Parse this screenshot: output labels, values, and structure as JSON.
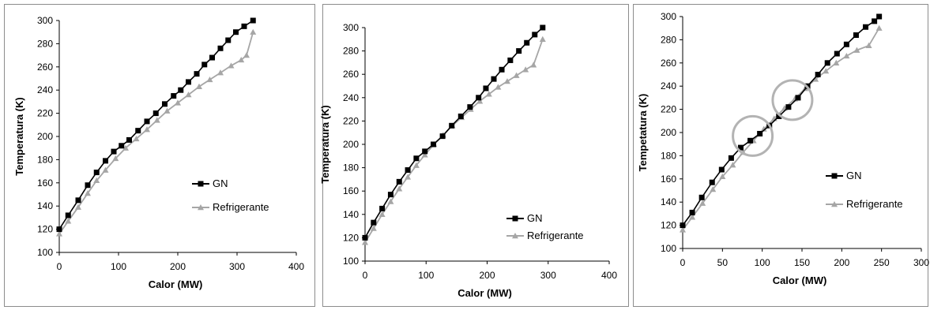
{
  "chart_data": [
    {
      "type": "line",
      "xlabel": "Calor (MW)",
      "ylabel": "Temperatura (K)",
      "xlim": [
        0,
        400
      ],
      "ylim": [
        100,
        300
      ],
      "xticks": [
        0,
        100,
        200,
        300,
        400
      ],
      "yticks": [
        100,
        120,
        140,
        160,
        180,
        200,
        220,
        240,
        260,
        280,
        300
      ],
      "grid": false,
      "legend_position": "right",
      "series": [
        {
          "name": "GN",
          "color": "#000000",
          "marker": "square",
          "points": [
            [
              0,
              120
            ],
            [
              15,
              132
            ],
            [
              32,
              145
            ],
            [
              48,
              158
            ],
            [
              63,
              169
            ],
            [
              78,
              179
            ],
            [
              92,
              187
            ],
            [
              105,
              192
            ],
            [
              118,
              197
            ],
            [
              133,
              205
            ],
            [
              148,
              213
            ],
            [
              163,
              220
            ],
            [
              178,
              228
            ],
            [
              193,
              235
            ],
            [
              205,
              240
            ],
            [
              218,
              247
            ],
            [
              232,
              254
            ],
            [
              245,
              262
            ],
            [
              258,
              268
            ],
            [
              272,
              276
            ],
            [
              285,
              283
            ],
            [
              298,
              290
            ],
            [
              312,
              295
            ],
            [
              327,
              300
            ]
          ]
        },
        {
          "name": "Refrigerante",
          "color": "#a6a6a6",
          "marker": "triangle",
          "points": [
            [
              0,
              116
            ],
            [
              15,
              127
            ],
            [
              32,
              139
            ],
            [
              48,
              151
            ],
            [
              63,
              162
            ],
            [
              78,
              171
            ],
            [
              95,
              181
            ],
            [
              112,
              190
            ],
            [
              130,
              198
            ],
            [
              148,
              206
            ],
            [
              165,
              214
            ],
            [
              182,
              222
            ],
            [
              200,
              229
            ],
            [
              218,
              236
            ],
            [
              236,
              243
            ],
            [
              254,
              249
            ],
            [
              272,
              255
            ],
            [
              290,
              261
            ],
            [
              307,
              266
            ],
            [
              316,
              270
            ],
            [
              327,
              290
            ]
          ]
        }
      ]
    },
    {
      "type": "line",
      "xlabel": "Calor (MW)",
      "ylabel": "Temperatura (K)",
      "xlim": [
        0,
        400
      ],
      "ylim": [
        100,
        300
      ],
      "xticks": [
        0,
        100,
        200,
        300,
        400
      ],
      "yticks": [
        100,
        120,
        140,
        160,
        180,
        200,
        220,
        240,
        260,
        280,
        300
      ],
      "grid": false,
      "legend_position": "bottom-right",
      "series": [
        {
          "name": "GN",
          "color": "#000000",
          "marker": "square",
          "points": [
            [
              0,
              120
            ],
            [
              14,
              133
            ],
            [
              28,
              145
            ],
            [
              42,
              157
            ],
            [
              56,
              168
            ],
            [
              70,
              178
            ],
            [
              84,
              188
            ],
            [
              98,
              194
            ],
            [
              112,
              200
            ],
            [
              127,
              207
            ],
            [
              142,
              216
            ],
            [
              157,
              224
            ],
            [
              172,
              232
            ],
            [
              186,
              240
            ],
            [
              198,
              248
            ],
            [
              211,
              256
            ],
            [
              224,
              264
            ],
            [
              238,
              272
            ],
            [
              252,
              280
            ],
            [
              265,
              287
            ],
            [
              278,
              294
            ],
            [
              291,
              300
            ]
          ]
        },
        {
          "name": "Refrigerante",
          "color": "#a6a6a6",
          "marker": "triangle",
          "points": [
            [
              0,
              116
            ],
            [
              14,
              128
            ],
            [
              28,
              140
            ],
            [
              42,
              151
            ],
            [
              56,
              162
            ],
            [
              70,
              172
            ],
            [
              84,
              182
            ],
            [
              98,
              191
            ],
            [
              113,
              200
            ],
            [
              128,
              208
            ],
            [
              143,
              216
            ],
            [
              158,
              223
            ],
            [
              173,
              230
            ],
            [
              188,
              237
            ],
            [
              203,
              243
            ],
            [
              218,
              249
            ],
            [
              233,
              254
            ],
            [
              248,
              259
            ],
            [
              263,
              264
            ],
            [
              276,
              268
            ],
            [
              291,
              290
            ]
          ]
        }
      ]
    },
    {
      "type": "line",
      "xlabel": "Calor (MW)",
      "ylabel": "Tempetatura (K)",
      "xlim": [
        0,
        300
      ],
      "ylim": [
        100,
        300
      ],
      "xticks": [
        0,
        50,
        100,
        150,
        200,
        250,
        300
      ],
      "xtick_labels": [
        "0",
        "50",
        "100",
        "150",
        "200",
        "250",
        "300"
      ],
      "yticks": [
        100,
        120,
        140,
        160,
        180,
        200,
        220,
        240,
        260,
        280,
        300
      ],
      "grid": false,
      "legend_position": "right",
      "annotations": [
        {
          "shape": "circle",
          "near": [
            88,
            197
          ]
        },
        {
          "shape": "circle",
          "near": [
            138,
            228
          ]
        }
      ],
      "series": [
        {
          "name": "GN",
          "color": "#000000",
          "marker": "square",
          "points": [
            [
              0,
              120
            ],
            [
              12,
              131
            ],
            [
              24,
              144
            ],
            [
              37,
              157
            ],
            [
              49,
              168
            ],
            [
              61,
              178
            ],
            [
              73,
              187
            ],
            [
              85,
              193
            ],
            [
              97,
              199
            ],
            [
              109,
              206
            ],
            [
              121,
              214
            ],
            [
              133,
              222
            ],
            [
              145,
              230
            ],
            [
              157,
              240
            ],
            [
              170,
              250
            ],
            [
              182,
              260
            ],
            [
              194,
              268
            ],
            [
              206,
              276
            ],
            [
              218,
              284
            ],
            [
              230,
              291
            ],
            [
              241,
              296
            ],
            [
              247,
              300
            ]
          ]
        },
        {
          "name": "Refrigerante",
          "color": "#a6a6a6",
          "marker": "triangle",
          "points": [
            [
              0,
              116
            ],
            [
              12,
              127
            ],
            [
              25,
              139
            ],
            [
              38,
              151
            ],
            [
              50,
              162
            ],
            [
              63,
              172
            ],
            [
              76,
              183
            ],
            [
              89,
              193
            ],
            [
              102,
              203
            ],
            [
              115,
              212
            ],
            [
              128,
              221
            ],
            [
              141,
              229
            ],
            [
              154,
              238
            ],
            [
              167,
              246
            ],
            [
              180,
              253
            ],
            [
              193,
              260
            ],
            [
              206,
              266
            ],
            [
              219,
              271
            ],
            [
              234,
              275
            ],
            [
              247,
              290
            ]
          ]
        }
      ]
    }
  ]
}
